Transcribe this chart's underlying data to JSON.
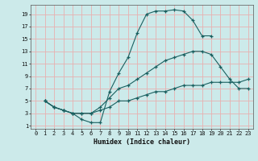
{
  "xlabel": "Humidex (Indice chaleur)",
  "bg_color": "#cceaea",
  "grid_color": "#e8b0b0",
  "line_color": "#1a6060",
  "xlim": [
    -0.5,
    23.5
  ],
  "ylim": [
    0.5,
    20.5
  ],
  "xticks": [
    0,
    1,
    2,
    3,
    4,
    5,
    6,
    7,
    8,
    9,
    10,
    11,
    12,
    13,
    14,
    15,
    16,
    17,
    18,
    19,
    20,
    21,
    22,
    23
  ],
  "yticks": [
    1,
    3,
    5,
    7,
    9,
    11,
    13,
    15,
    17,
    19
  ],
  "s1x": [
    1,
    2,
    3,
    4,
    5,
    6,
    7,
    8,
    9,
    10,
    11,
    12,
    13,
    14,
    15,
    16,
    17,
    18,
    19
  ],
  "s1y": [
    5,
    4,
    3.5,
    3,
    2,
    1.5,
    1.5,
    6.5,
    9.5,
    12,
    16,
    19,
    19.5,
    19.5,
    19.7,
    19.5,
    18,
    15.5,
    15.5
  ],
  "s2x": [
    1,
    2,
    3,
    4,
    5,
    6,
    7,
    8,
    9,
    10,
    11,
    12,
    13,
    14,
    15,
    16,
    17,
    18,
    19,
    20,
    21,
    22,
    23
  ],
  "s2y": [
    5,
    4,
    3.5,
    3,
    3,
    3,
    4,
    5.5,
    7,
    7.5,
    8.5,
    9.5,
    10.5,
    11.5,
    12,
    12.5,
    13,
    13,
    12.5,
    10.5,
    8.5,
    7,
    7
  ],
  "s3x": [
    1,
    2,
    3,
    4,
    5,
    6,
    7,
    8,
    9,
    10,
    11,
    12,
    13,
    14,
    15,
    16,
    17,
    18,
    19,
    20,
    21,
    22,
    23
  ],
  "s3y": [
    5,
    4,
    3.5,
    3,
    3,
    3,
    3.5,
    4,
    5,
    5,
    5.5,
    6,
    6.5,
    6.5,
    7,
    7.5,
    7.5,
    7.5,
    8,
    8,
    8,
    8,
    8.5
  ]
}
